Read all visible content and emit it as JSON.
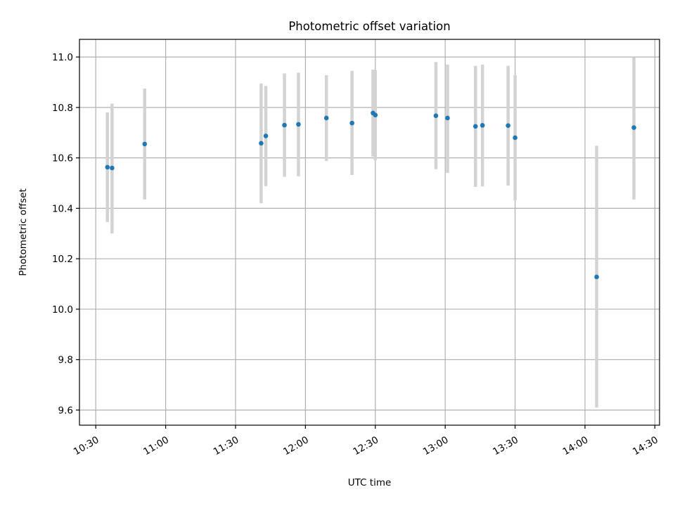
{
  "chart_data": {
    "type": "scatter",
    "title": "Photometric offset variation",
    "xlabel": "UTC time",
    "ylabel": "Photometric offset",
    "x_ticks": [
      "10:30",
      "11:00",
      "11:30",
      "12:00",
      "12:30",
      "13:00",
      "13:30",
      "14:00",
      "14:30"
    ],
    "y_ticks": [
      "9.6",
      "9.8",
      "10.0",
      "10.2",
      "10.4",
      "10.6",
      "10.8",
      "11.0"
    ],
    "xlim": [
      "10:23",
      "14:32"
    ],
    "ylim": [
      9.54,
      11.07
    ],
    "grid": true,
    "colors": {
      "points": "#1f77b4",
      "errorbars": "#d3d3d3"
    },
    "series": [
      {
        "points": [
          {
            "x": "10:35",
            "y": 10.563,
            "yerr_low": 10.345,
            "yerr_high": 10.78
          },
          {
            "x": "10:37",
            "y": 10.56,
            "yerr_low": 10.3,
            "yerr_high": 10.815
          },
          {
            "x": "10:51",
            "y": 10.655,
            "yerr_low": 10.435,
            "yerr_high": 10.875
          },
          {
            "x": "11:41",
            "y": 10.658,
            "yerr_low": 10.42,
            "yerr_high": 10.895
          },
          {
            "x": "11:43",
            "y": 10.687,
            "yerr_low": 10.488,
            "yerr_high": 10.885
          },
          {
            "x": "11:51",
            "y": 10.73,
            "yerr_low": 10.525,
            "yerr_high": 10.935
          },
          {
            "x": "11:57",
            "y": 10.733,
            "yerr_low": 10.527,
            "yerr_high": 10.938
          },
          {
            "x": "12:09",
            "y": 10.758,
            "yerr_low": 10.588,
            "yerr_high": 10.928
          },
          {
            "x": "12:20",
            "y": 10.738,
            "yerr_low": 10.532,
            "yerr_high": 10.945
          },
          {
            "x": "12:29",
            "y": 10.778,
            "yerr_low": 10.605,
            "yerr_high": 10.95
          },
          {
            "x": "12:30",
            "y": 10.77,
            "yerr_low": 10.59,
            "yerr_high": 10.948
          },
          {
            "x": "12:56",
            "y": 10.767,
            "yerr_low": 10.555,
            "yerr_high": 10.98
          },
          {
            "x": "13:01",
            "y": 10.758,
            "yerr_low": 10.54,
            "yerr_high": 10.97
          },
          {
            "x": "13:13",
            "y": 10.725,
            "yerr_low": 10.485,
            "yerr_high": 10.965
          },
          {
            "x": "13:16",
            "y": 10.729,
            "yerr_low": 10.487,
            "yerr_high": 10.97
          },
          {
            "x": "13:27",
            "y": 10.728,
            "yerr_low": 10.49,
            "yerr_high": 10.965
          },
          {
            "x": "13:30",
            "y": 10.68,
            "yerr_low": 10.432,
            "yerr_high": 10.928
          },
          {
            "x": "14:05",
            "y": 10.128,
            "yerr_low": 9.61,
            "yerr_high": 10.648
          },
          {
            "x": "14:21",
            "y": 10.72,
            "yerr_low": 10.435,
            "yerr_high": 10.998
          }
        ]
      }
    ]
  }
}
